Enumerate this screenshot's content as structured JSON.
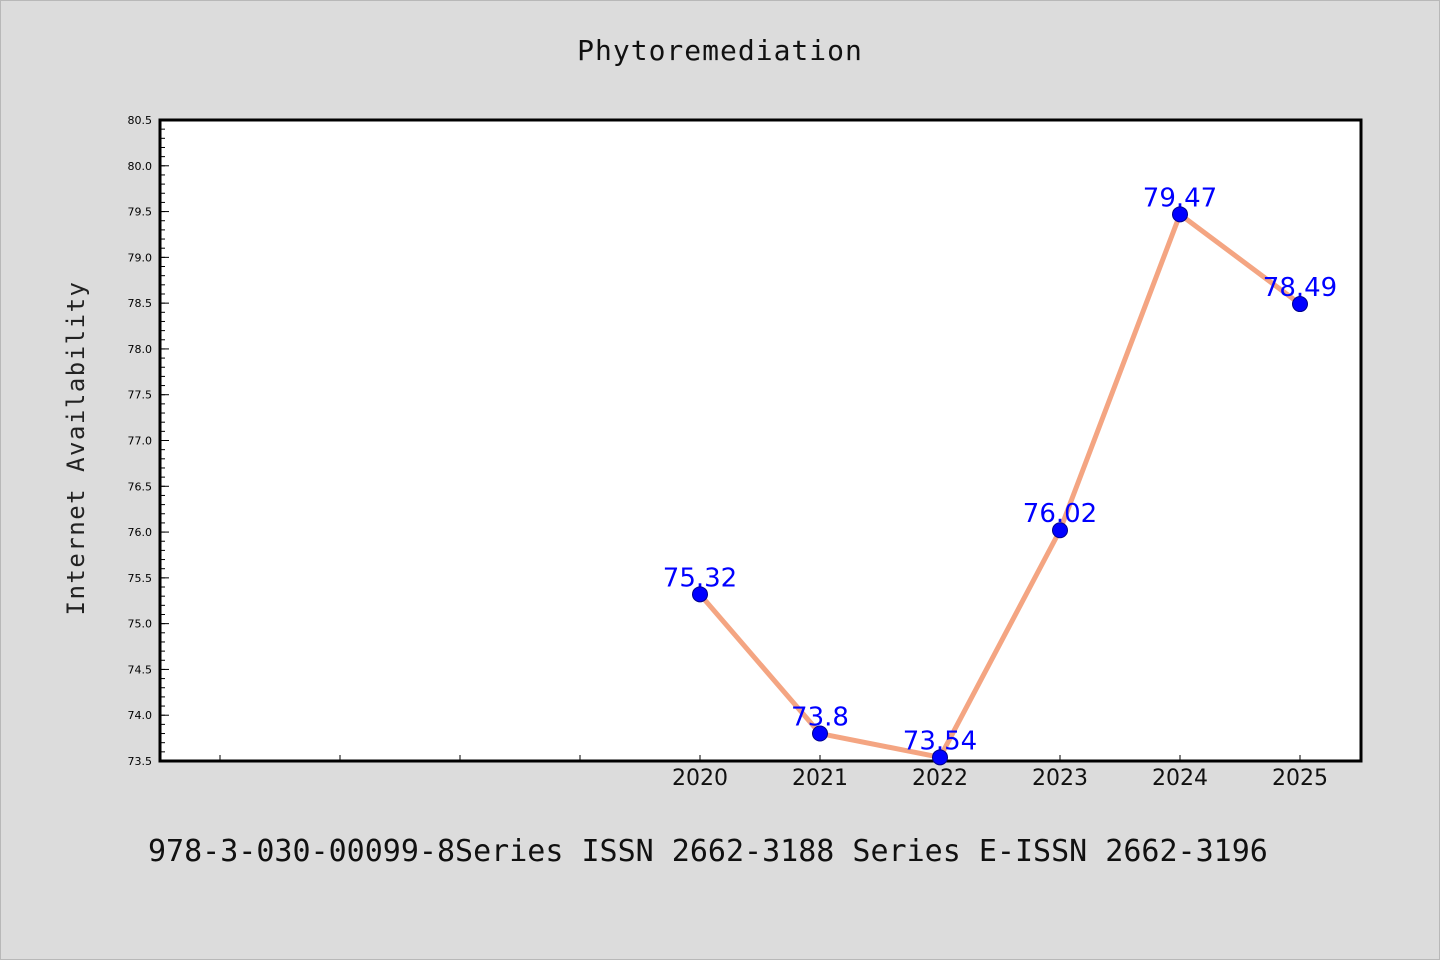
{
  "chart_data": {
    "type": "line",
    "title": "Phytoremediation",
    "xlabel": "",
    "ylabel": "Internet Availability",
    "categories": [
      "2020",
      "2021",
      "2022",
      "2023",
      "2024",
      "2025"
    ],
    "series": [
      {
        "values": [
          75.32,
          73.8,
          73.54,
          76.02,
          79.47,
          78.49
        ]
      }
    ],
    "data_labels": [
      "75.32",
      "73.8",
      "73.54",
      "76.02",
      "79.47",
      "78.49"
    ],
    "ylim": [
      73.5,
      80.5
    ],
    "y_ticks": [
      "73.5",
      "74.0",
      "74.5",
      "75.0",
      "75.5",
      "76.0",
      "76.5",
      "77.0",
      "77.5",
      "78.0",
      "78.5",
      "79.0",
      "79.5",
      "80.0",
      "80.5"
    ],
    "grid": false,
    "legend": "none",
    "colors": {
      "line": "#f4a582",
      "marker": "#0000ff",
      "label": "#0000ff",
      "background": "#dcdcdc",
      "plot_bg": "#ffffff"
    }
  },
  "footer": "978-3-030-00099-8Series ISSN 2662-3188 Series E-ISSN 2662-3196"
}
